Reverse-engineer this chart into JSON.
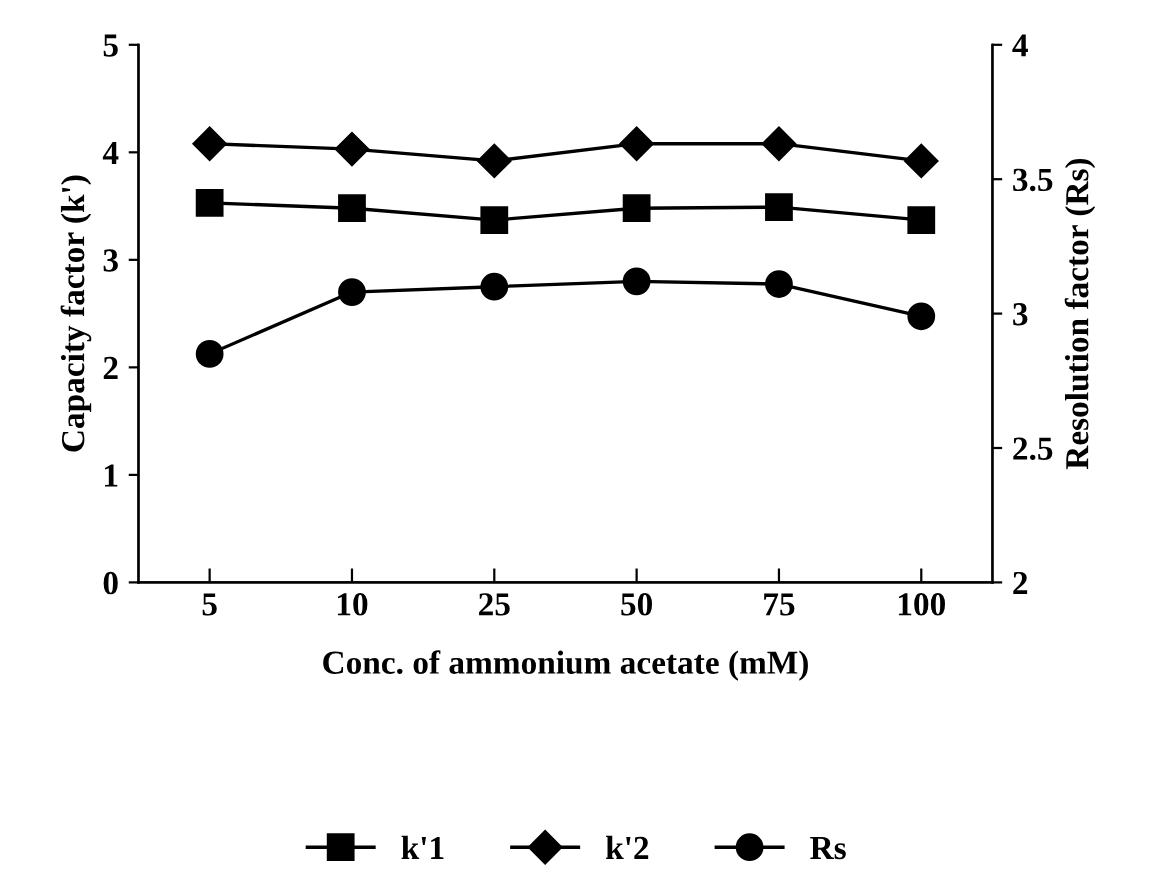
{
  "chart_data": {
    "type": "line",
    "xlabel": "Conc. of ammonium acetate (mM)",
    "ylabel": "Capacity factor (k')",
    "y2label": "Resolution factor (Rs)",
    "categories": [
      "5",
      "10",
      "25",
      "50",
      "75",
      "100"
    ],
    "ylim": [
      0,
      5
    ],
    "yticks": [
      0,
      1,
      2,
      3,
      4,
      5
    ],
    "y2lim": [
      2,
      4
    ],
    "y2ticks": [
      2,
      2.5,
      3,
      3.5,
      4
    ],
    "grid": false,
    "legend": "bottom",
    "line_style": "solid",
    "series": [
      {
        "name": "k'1",
        "color": "#000000",
        "marker": "square",
        "values": [
          3.53,
          3.48,
          3.37,
          3.48,
          3.49,
          3.37
        ]
      },
      {
        "name": "k'2",
        "color": "#000000",
        "marker": "diamond",
        "values": [
          4.08,
          4.03,
          3.92,
          4.08,
          4.08,
          3.92
        ]
      },
      {
        "name": "Rs",
        "color": "#000000",
        "marker": "circle",
        "axis": "y2",
        "values": [
          2.85,
          3.08,
          3.1,
          3.12,
          3.11,
          2.99
        ]
      }
    ]
  }
}
